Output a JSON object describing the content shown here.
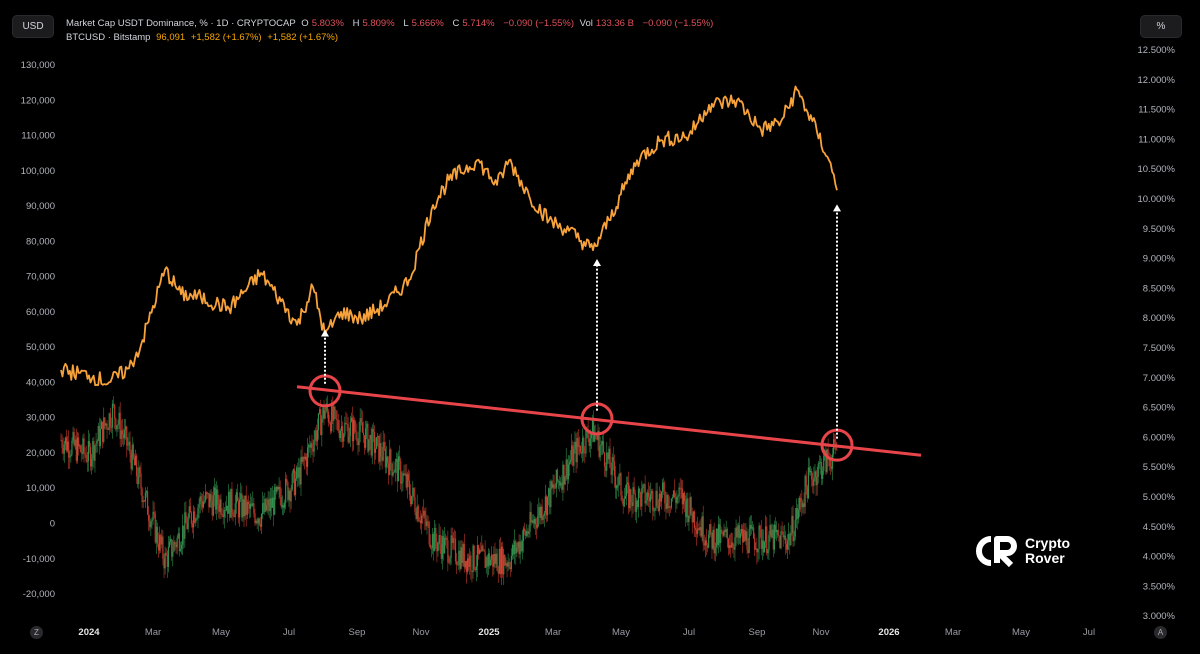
{
  "toolbar": {
    "currency_button": "USD",
    "scale_button": "%",
    "auto_scale": "A",
    "zoom_reset": "Z"
  },
  "legend": {
    "series1": {
      "name": "Market Cap USDT Dominance, % · 1D · CRYPTOCAP",
      "o_label": "O",
      "o": "5.803%",
      "h_label": "H",
      "h": "5.809%",
      "l_label": "L",
      "l": "5.666%",
      "c_label": "C",
      "c": "5.714%",
      "change": "−0.090 (−1.55%)",
      "vol_label": "Vol",
      "vol": "133.36 B",
      "vol_change": "−0.090 (−1.55%)"
    },
    "series2": {
      "name": "BTCUSD · Bitstamp",
      "price": "96,091",
      "change1": "+1,582 (+1.67%)",
      "change2": "+1,582 (+1.67%)"
    }
  },
  "logo": {
    "line1": "Crypto",
    "line2": "Rover",
    "mark": "CR"
  },
  "colors": {
    "btc": "#f7a23b",
    "up": "#2f8f4e",
    "down": "#c0392b",
    "trend": "#e8454a",
    "bg": "#000000"
  },
  "chart_data": {
    "type": "line",
    "x_ticks": [
      {
        "label": "2024",
        "x": 2024.0,
        "year": true
      },
      {
        "label": "Mar",
        "x": 2024.16
      },
      {
        "label": "May",
        "x": 2024.33
      },
      {
        "label": "Jul",
        "x": 2024.5
      },
      {
        "label": "Sep",
        "x": 2024.67
      },
      {
        "label": "Nov",
        "x": 2024.83
      },
      {
        "label": "2025",
        "x": 2025.0,
        "year": true
      },
      {
        "label": "Mar",
        "x": 2025.16
      },
      {
        "label": "May",
        "x": 2025.33
      },
      {
        "label": "Jul",
        "x": 2025.5
      },
      {
        "label": "Sep",
        "x": 2025.67
      },
      {
        "label": "Nov",
        "x": 2025.83
      },
      {
        "label": "2026",
        "x": 2026.0,
        "year": true
      },
      {
        "label": "Mar",
        "x": 2026.16
      },
      {
        "label": "May",
        "x": 2026.33
      },
      {
        "label": "Jul",
        "x": 2026.5
      }
    ],
    "xlim": [
      2023.93,
      2026.75
    ],
    "left_axis": {
      "ylim": [
        -20000,
        130000
      ],
      "ticks": [
        "130,000",
        "120,000",
        "110,000",
        "100,000",
        "90,000",
        "80,000",
        "70,000",
        "60,000",
        "50,000",
        "40,000",
        "30,000",
        "20,000",
        "10,000",
        "0",
        "-10,000",
        "-20,000"
      ],
      "tick_values": [
        130000,
        120000,
        110000,
        100000,
        90000,
        80000,
        70000,
        60000,
        50000,
        40000,
        30000,
        20000,
        10000,
        0,
        -10000,
        -20000
      ]
    },
    "right_axis": {
      "ylim": [
        3.0,
        12.5
      ],
      "ticks": [
        "12.500%",
        "12.000%",
        "11.500%",
        "11.000%",
        "10.500%",
        "10.000%",
        "9.500%",
        "9.000%",
        "8.500%",
        "8.000%",
        "7.500%",
        "7.000%",
        "6.500%",
        "6.000%",
        "5.500%",
        "5.000%",
        "4.500%",
        "4.000%",
        "3.500%",
        "3.000%"
      ],
      "tick_values": [
        12.5,
        12,
        11.5,
        11,
        10.5,
        10,
        9.5,
        9,
        8.5,
        8,
        7.5,
        7,
        6.5,
        6,
        5.5,
        5,
        4.5,
        4,
        3.5,
        3
      ]
    },
    "series": [
      {
        "name": "BTCUSD",
        "axis": "left",
        "type": "line",
        "x": [
          2023.93,
          2024.0,
          2024.05,
          2024.1,
          2024.13,
          2024.19,
          2024.23,
          2024.28,
          2024.35,
          2024.43,
          2024.48,
          2024.52,
          2024.56,
          2024.59,
          2024.63,
          2024.68,
          2024.74,
          2024.8,
          2024.86,
          2024.9,
          2024.97,
          2025.02,
          2025.05,
          2025.1,
          2025.15,
          2025.2,
          2025.26,
          2025.3,
          2025.37,
          2025.43,
          2025.5,
          2025.55,
          2025.62,
          2025.68,
          2025.73,
          2025.77,
          2025.82,
          2025.85,
          2025.87
        ],
        "values": [
          43500,
          42000,
          40000,
          44000,
          50600,
          72000,
          65000,
          64000,
          61000,
          71000,
          63000,
          56300,
          67000,
          53400,
          60000,
          58000,
          62000,
          69000,
          90300,
          97400,
          103000,
          96000,
          103000,
          93000,
          86000,
          83000,
          77500,
          86000,
          103000,
          108700,
          110000,
          118700,
          120000,
          111600,
          114000,
          123000,
          111000,
          103000,
          94500
        ]
      },
      {
        "name": "USDT Dominance",
        "axis": "right",
        "type": "candlestick",
        "x": [
          2023.93,
          2024.0,
          2024.06,
          2024.1,
          2024.19,
          2024.28,
          2024.35,
          2024.43,
          2024.52,
          2024.59,
          2024.62,
          2024.68,
          2024.78,
          2024.86,
          2024.95,
          2025.05,
          2025.15,
          2025.22,
          2025.26,
          2025.34,
          2025.48,
          2025.55,
          2025.65,
          2025.75,
          2025.8,
          2025.87
        ],
        "values": [
          5.96,
          5.7,
          6.46,
          5.8,
          3.94,
          4.95,
          4.9,
          4.7,
          5.29,
          6.46,
          6.2,
          6.1,
          5.4,
          4.28,
          3.95,
          3.95,
          5.0,
          5.8,
          6.12,
          5.0,
          5.0,
          4.3,
          4.3,
          4.3,
          5.3,
          5.79
        ]
      }
    ],
    "annotations": {
      "trendline": {
        "x": [
          2024.52,
          2026.08
        ],
        "values": [
          6.85,
          5.7
        ],
        "color": "#e8454a"
      },
      "circles": [
        {
          "x": 2024.59,
          "value": 6.78
        },
        {
          "x": 2025.27,
          "value": 6.31
        },
        {
          "x": 2025.87,
          "value": 5.87
        }
      ],
      "arrows": [
        {
          "x": 2024.59,
          "from": 6.9,
          "to": 55000
        },
        {
          "x": 2025.27,
          "from": 6.45,
          "to": 75000
        },
        {
          "x": 2025.87,
          "from": 5.98,
          "to": 90500
        }
      ]
    }
  }
}
